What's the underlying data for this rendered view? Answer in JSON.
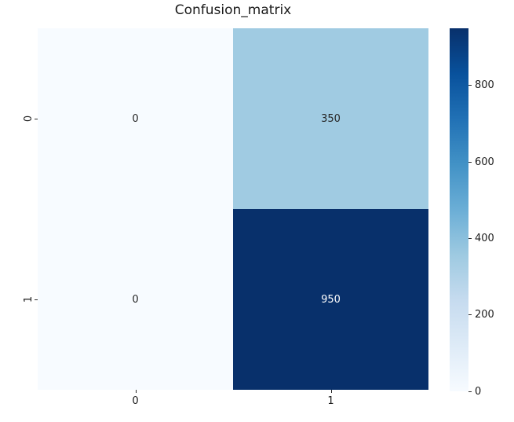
{
  "chart_data": {
    "type": "heatmap",
    "title": "Confusion_matrix",
    "x_tick_labels": [
      "0",
      "1"
    ],
    "y_tick_labels": [
      "0",
      "1"
    ],
    "values": [
      [
        0,
        350
      ],
      [
        0,
        950
      ]
    ],
    "vmin": 0,
    "vmax": 950,
    "colormap": "Blues",
    "grid": false,
    "legend_position": "colorbar-right",
    "colorbar_ticks": [
      "0",
      "200",
      "400",
      "600",
      "800"
    ],
    "colorbar_tick_values": [
      0,
      200,
      400,
      600,
      800
    ],
    "colormap_stops": [
      "#f7fbff",
      "#deebf7",
      "#c6dbef",
      "#9ecae1",
      "#6baed6",
      "#4292c6",
      "#2171b5",
      "#08519c",
      "#08306b"
    ],
    "cells": [
      {
        "row": 0,
        "col": 0,
        "value": "0",
        "bg": "#f7fbff",
        "fg": "#262626"
      },
      {
        "row": 0,
        "col": 1,
        "value": "350",
        "bg": "#a0cbe2",
        "fg": "#262626"
      },
      {
        "row": 1,
        "col": 0,
        "value": "0",
        "bg": "#f7fbff",
        "fg": "#262626"
      },
      {
        "row": 1,
        "col": 1,
        "value": "950",
        "bg": "#08306b",
        "fg": "#ffffff"
      }
    ]
  }
}
